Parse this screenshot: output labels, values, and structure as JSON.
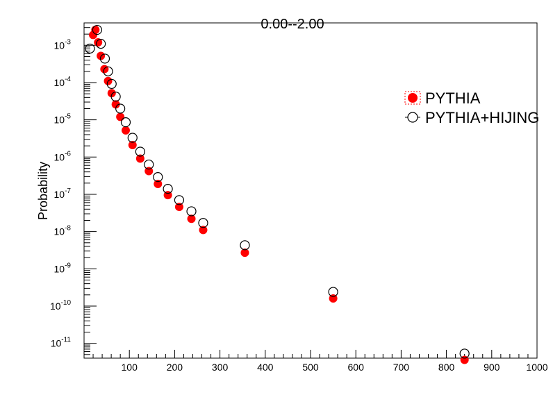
{
  "chart_data": {
    "type": "scatter",
    "title": "0.00--2.00",
    "xlabel": "",
    "ylabel": "Probability",
    "xlim": [
      0,
      1000
    ],
    "ylim": [
      4e-12,
      0.004
    ],
    "ylog": true,
    "grid": false,
    "legend_position": "top-right",
    "x_tick_labels": [
      "100",
      "200",
      "300",
      "400",
      "500",
      "600",
      "700",
      "800",
      "900",
      "1000"
    ],
    "y_tick_labels": [
      {
        "base": "10",
        "exp": "-3"
      },
      {
        "base": "10",
        "exp": "-4"
      },
      {
        "base": "10",
        "exp": "-5"
      },
      {
        "base": "10",
        "exp": "-6"
      },
      {
        "base": "10",
        "exp": "-7"
      },
      {
        "base": "10",
        "exp": "-8"
      },
      {
        "base": "10",
        "exp": "-9"
      },
      {
        "base": "10",
        "exp": "-10"
      },
      {
        "base": "10",
        "exp": "-11"
      }
    ],
    "series": [
      {
        "name": "PYTHIA",
        "marker": "filled-circle",
        "color": "#ff0000",
        "points": [
          [
            20,
            0.0019
          ],
          [
            25,
            0.0026
          ],
          [
            31,
            0.0012
          ],
          [
            37,
            0.00052
          ],
          [
            45,
            0.00023
          ],
          [
            53,
            0.00011
          ],
          [
            61,
            5.2e-05
          ],
          [
            70,
            2.6e-05
          ],
          [
            80,
            1.2e-05
          ],
          [
            92,
            5.2e-06
          ],
          [
            107,
            2.1e-06
          ],
          [
            124,
            9.1e-07
          ],
          [
            143,
            4.2e-07
          ],
          [
            163,
            1.9e-07
          ],
          [
            185,
            9.5e-08
          ],
          [
            210,
            4.6e-08
          ],
          [
            237,
            2.2e-08
          ],
          [
            263,
            1.1e-08
          ],
          [
            355,
            2.7e-09
          ],
          [
            550,
            1.6e-10
          ],
          [
            840,
            3.6e-12
          ]
        ]
      },
      {
        "name": "PYTHIA+HIJING",
        "marker": "open-circle",
        "color": "#000000",
        "points": [
          [
            13,
            0.00082
          ],
          [
            29,
            0.0026
          ],
          [
            37,
            0.0011
          ],
          [
            46,
            0.00044
          ],
          [
            53,
            0.0002
          ],
          [
            61,
            9.2e-05
          ],
          [
            70,
            4.2e-05
          ],
          [
            80,
            2e-05
          ],
          [
            92,
            8.6e-06
          ],
          [
            107,
            3.3e-06
          ],
          [
            124,
            1.4e-06
          ],
          [
            143,
            6.3e-07
          ],
          [
            163,
            2.9e-07
          ],
          [
            185,
            1.4e-07
          ],
          [
            210,
            7e-08
          ],
          [
            237,
            3.5e-08
          ],
          [
            263,
            1.7e-08
          ],
          [
            355,
            4.3e-09
          ],
          [
            550,
            2.4e-10
          ],
          [
            840,
            5.3e-12
          ]
        ]
      }
    ]
  }
}
